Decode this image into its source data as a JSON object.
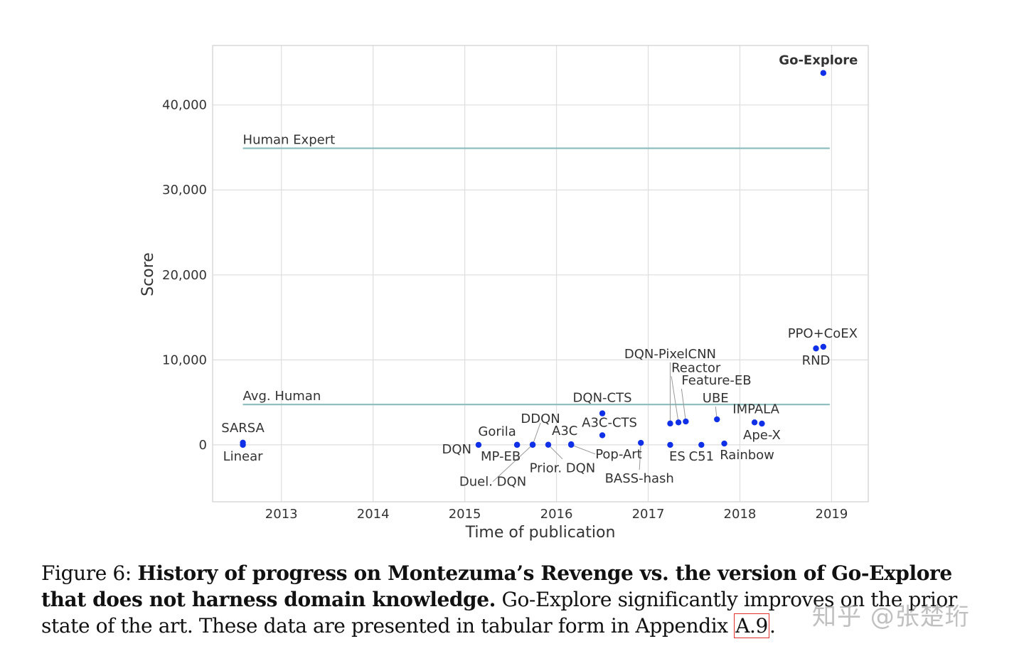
{
  "chart_data": {
    "type": "scatter",
    "xlabel": "Time of publication",
    "ylabel": "Score",
    "xlim": [
      2012.25,
      2019.4
    ],
    "ylim": [
      -6700,
      47000
    ],
    "xticks": [
      2013,
      2014,
      2015,
      2016,
      2017,
      2018,
      2019
    ],
    "xtick_labels": [
      "2013",
      "2014",
      "2015",
      "2016",
      "2017",
      "2018",
      "2019"
    ],
    "yticks": [
      0,
      10000,
      20000,
      30000,
      40000
    ],
    "ytick_labels": [
      "0",
      "10,000",
      "20,000",
      "30,000",
      "40,000"
    ],
    "grid": true,
    "point_color": "#1030e8",
    "line_color": "#8fbfbf",
    "reference_lines": [
      {
        "name": "Human Expert",
        "value": 34900,
        "x_start": 2012.58,
        "x_end": 2018.98
      },
      {
        "name": "Avg. Human",
        "value": 4750,
        "x_start": 2012.58,
        "x_end": 2018.98
      }
    ],
    "points": [
      {
        "name": "SARSA",
        "x": 2012.58,
        "y": 259,
        "bold": false
      },
      {
        "name": "Linear",
        "x": 2012.58,
        "y": 0,
        "bold": false
      },
      {
        "name": "DQN",
        "x": 2015.15,
        "y": 0,
        "bold": false
      },
      {
        "name": "Gorila",
        "x": 2015.57,
        "y": 4,
        "bold": false
      },
      {
        "name": "MP-EB",
        "x": 2015.57,
        "y": 0,
        "bold": false
      },
      {
        "name": "DDQN",
        "x": 2015.74,
        "y": 0,
        "bold": false
      },
      {
        "name": "Duel. DQN",
        "x": 2015.74,
        "y": 22,
        "bold": false
      },
      {
        "name": "Prior. DQN",
        "x": 2015.91,
        "y": 13,
        "bold": false
      },
      {
        "name": "A3C",
        "x": 2016.16,
        "y": 67,
        "bold": false
      },
      {
        "name": "Pop-Art",
        "x": 2016.16,
        "y": 0,
        "bold": false
      },
      {
        "name": "DQN-CTS",
        "x": 2016.5,
        "y": 3705,
        "bold": false
      },
      {
        "name": "A3C-CTS",
        "x": 2016.5,
        "y": 1127,
        "bold": false
      },
      {
        "name": "BASS-hash",
        "x": 2016.92,
        "y": 238,
        "bold": false
      },
      {
        "name": "ES",
        "x": 2017.24,
        "y": 0,
        "bold": false
      },
      {
        "name": "DQN-PixelCNN",
        "x": 2017.24,
        "y": 2514,
        "bold": false
      },
      {
        "name": "Reactor",
        "x": 2017.33,
        "y": 2643,
        "bold": false
      },
      {
        "name": "Feature-EB",
        "x": 2017.41,
        "y": 2745,
        "bold": false
      },
      {
        "name": "C51",
        "x": 2017.58,
        "y": 0,
        "bold": false
      },
      {
        "name": "UBE",
        "x": 2017.75,
        "y": 3000,
        "bold": false
      },
      {
        "name": "Rainbow",
        "x": 2017.83,
        "y": 154,
        "bold": false
      },
      {
        "name": "IMPALA",
        "x": 2018.16,
        "y": 2643,
        "bold": false
      },
      {
        "name": "Ape-X",
        "x": 2018.24,
        "y": 2500,
        "bold": false
      },
      {
        "name": "RND",
        "x": 2018.83,
        "y": 11347,
        "bold": false
      },
      {
        "name": "PPO+CoEX",
        "x": 2018.91,
        "y": 11540,
        "bold": false
      },
      {
        "name": "Go-Explore",
        "x": 2018.91,
        "y": 43763,
        "bold": true
      }
    ]
  },
  "caption": {
    "prefix": "Figure 6: ",
    "bold": "History of progress on Montezuma’s Revenge vs. the version of Go-Explore that does not harness domain knowledge.",
    "text": " Go-Explore significantly improves on the prior state of the art. These data are presented in tabular form in Appendix ",
    "ref": "A.9",
    "suffix": "."
  },
  "watermark": "知乎 @张楚珩"
}
